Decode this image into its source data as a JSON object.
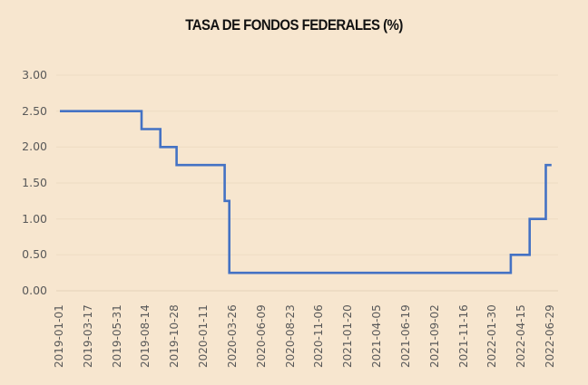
{
  "chart_data": {
    "type": "line",
    "title": "TASA DE FONDOS FEDERALES (%)",
    "xlabel": "",
    "ylabel": "",
    "ylim": [
      0,
      3
    ],
    "grid": true,
    "legend": "none",
    "y_ticks": [
      "0.00",
      "0.50",
      "1.00",
      "1.50",
      "2.00",
      "2.50",
      "3.00"
    ],
    "x_ticks": [
      "2019-01-01",
      "2019-03-17",
      "2019-05-31",
      "2019-08-14",
      "2019-10-28",
      "2020-01-11",
      "2020-03-26",
      "2020-06-09",
      "2020-08-23",
      "2020-11-06",
      "2021-01-20",
      "2021-04-05",
      "2021-06-19",
      "2021-09-02",
      "2021-11-16",
      "2022-01-30",
      "2022-04-15",
      "2022-06-29"
    ],
    "line_color": "#4472c4",
    "series": [
      {
        "name": "Tasa de fondos federales",
        "step": true,
        "points": [
          {
            "x": "2019-01-01",
            "y": 2.5
          },
          {
            "x": "2019-08-01",
            "y": 2.25
          },
          {
            "x": "2019-09-19",
            "y": 2.0
          },
          {
            "x": "2019-10-31",
            "y": 1.75
          },
          {
            "x": "2020-03-04",
            "y": 1.25
          },
          {
            "x": "2020-03-16",
            "y": 0.25
          },
          {
            "x": "2022-03-17",
            "y": 0.5
          },
          {
            "x": "2022-05-05",
            "y": 1.0
          },
          {
            "x": "2022-06-16",
            "y": 1.75
          },
          {
            "x": "2022-07-01",
            "y": 1.75
          }
        ]
      }
    ]
  }
}
